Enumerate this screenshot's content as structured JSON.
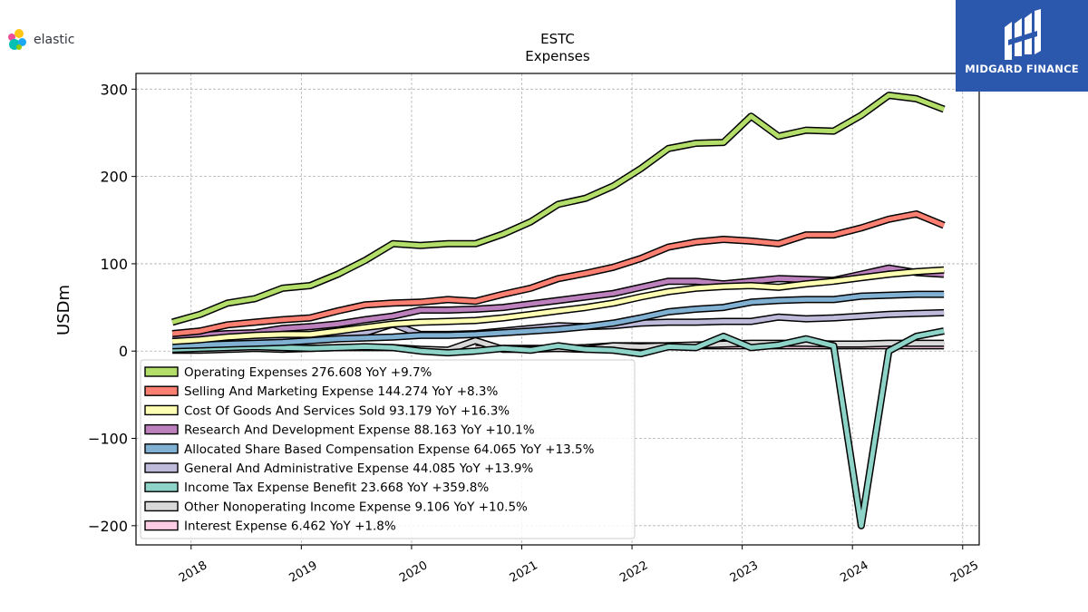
{
  "brand": {
    "left_logo_text": "elastic",
    "right_logo_text": "MIDGARD FINANCE"
  },
  "chart_data": {
    "type": "line",
    "title": "ESTC",
    "subtitle": "Expenses",
    "ylabel": "USDm",
    "xlabel": "",
    "ylim": [
      -222,
      318
    ],
    "xlim": [
      2017.5,
      2025.15
    ],
    "yticks": [
      300,
      200,
      100,
      0,
      -100,
      -200
    ],
    "ytick_labels": [
      "300",
      "200",
      "100",
      "0",
      "−100",
      "−200"
    ],
    "xticks": [
      2018,
      2019,
      2020,
      2021,
      2022,
      2023,
      2024,
      2025
    ],
    "xtick_labels": [
      "2018",
      "2019",
      "2020",
      "2021",
      "2022",
      "2023",
      "2024",
      "2025"
    ],
    "grid": true,
    "legend_position": "lower-left",
    "x": [
      2017.83,
      2018.08,
      2018.33,
      2018.58,
      2018.83,
      2019.08,
      2019.33,
      2019.58,
      2019.83,
      2020.08,
      2020.33,
      2020.58,
      2020.83,
      2021.08,
      2021.33,
      2021.58,
      2021.83,
      2022.08,
      2022.33,
      2022.58,
      2022.83,
      2023.08,
      2023.33,
      2023.58,
      2023.83,
      2024.08,
      2024.33,
      2024.58,
      2024.83
    ],
    "series": [
      {
        "name": "Operating Expenses",
        "legend": "Operating Expenses  276.608 YoY +9.7%",
        "color": "#b3de69",
        "values": [
          33,
          42,
          55,
          60,
          72,
          75,
          88,
          104,
          123,
          121,
          123,
          123,
          134,
          148,
          168,
          175,
          189,
          209,
          232,
          238,
          239,
          269,
          246,
          253,
          252,
          270,
          293,
          289,
          277
        ]
      },
      {
        "name": "Selling And Marketing Expense",
        "legend": "Selling And Marketing Expense  144.274 YoY +8.3%",
        "color": "#fb8072",
        "values": [
          20,
          23,
          30,
          33,
          36,
          38,
          46,
          53,
          55,
          56,
          59,
          57,
          65,
          72,
          83,
          89,
          96,
          106,
          119,
          125,
          128,
          126,
          123,
          133,
          133,
          141,
          151,
          157,
          144
        ]
      },
      {
        "name": "Cost Of Goods And Services Sold",
        "legend": "Cost Of Goods And Services Sold  93.179 YoY +16.3%",
        "color": "#ffffb3",
        "values": [
          11,
          13,
          16,
          18,
          19,
          19,
          23,
          27,
          31,
          33,
          34,
          35,
          38,
          42,
          46,
          50,
          55,
          62,
          68,
          72,
          74,
          75,
          73,
          77,
          80,
          84,
          88,
          91,
          93
        ]
      },
      {
        "name": "Research And Development Expense",
        "legend": "Research And Development Expense  88.163 YoY +10.1%",
        "color": "#bc80bd",
        "values": [
          17,
          18,
          20,
          21,
          26,
          28,
          31,
          36,
          40,
          47,
          47,
          48,
          50,
          54,
          58,
          62,
          66,
          73,
          80,
          80,
          77,
          80,
          83,
          82,
          81,
          88,
          95,
          90,
          88
        ]
      },
      {
        "name": "Allocated Share Based Compensation Expense",
        "legend": "Allocated Share Based Compensation Expense  64.065 YoY +13.5%",
        "color": "#80b1d3",
        "values": [
          6,
          7,
          8,
          9,
          10,
          12,
          14,
          15,
          16,
          18,
          18,
          19,
          21,
          23,
          25,
          28,
          32,
          38,
          45,
          48,
          50,
          56,
          58,
          59,
          59,
          63,
          64,
          65,
          65
        ]
      },
      {
        "name": "General And Administrative Expense",
        "legend": "General And Administrative Expense  44.085 YoY +13.9%",
        "color": "#bebada",
        "values": [
          12,
          13,
          14,
          14,
          14,
          16,
          18,
          21,
          31,
          19,
          19,
          20,
          23,
          26,
          29,
          28,
          29,
          32,
          33,
          33,
          34,
          34,
          39,
          37,
          38,
          40,
          42,
          43,
          44
        ]
      },
      {
        "name": "Income Tax Expense Benefit",
        "legend": "Income Tax Expense Benefit  23.668 YoY +359.8%",
        "color": "#8dd3c7",
        "values": [
          2,
          3,
          4,
          5,
          4,
          3,
          4,
          5,
          4,
          0,
          -2,
          0,
          3,
          1,
          6,
          2,
          1,
          -3,
          5,
          4,
          17,
          4,
          7,
          14,
          6,
          -200,
          0,
          17,
          23
        ]
      },
      {
        "name": "Other Nonoperating Income Expense",
        "legend": "Other Nonoperating Income Expense  9.106 YoY +10.5%",
        "color": "#d9d9d9",
        "values": [
          1,
          1,
          2,
          3,
          2,
          3,
          4,
          4,
          4,
          2,
          1,
          12,
          2,
          2,
          3,
          2,
          6,
          5,
          6,
          7,
          8,
          9,
          9,
          9,
          8,
          8,
          9,
          9,
          9
        ]
      },
      {
        "name": "Interest Expense",
        "legend": "Interest Expense  6.462 YoY +1.8%",
        "color": "#fccde5",
        "values": [
          null,
          null,
          null,
          null,
          null,
          null,
          null,
          null,
          null,
          null,
          null,
          3,
          3,
          3,
          3,
          4,
          6,
          6,
          6,
          6,
          6,
          6,
          6,
          6,
          6,
          6,
          6,
          6,
          6
        ]
      }
    ]
  }
}
